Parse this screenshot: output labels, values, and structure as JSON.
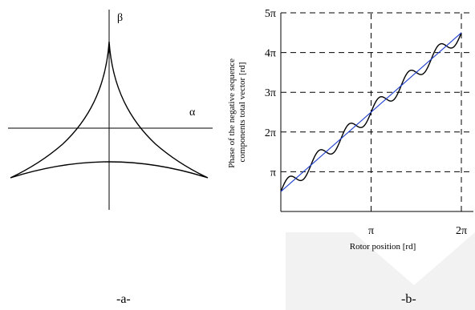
{
  "panel_a": {
    "axis_alpha": "α",
    "axis_beta": "β",
    "caption": "-a-"
  },
  "panel_b": {
    "caption": "-b-"
  },
  "chart_data": [
    {
      "type": "line",
      "panel": "a",
      "title": "",
      "xlabel": "α",
      "ylabel": "β",
      "shape": "three-cusp hypocycloid locus of negative sequence vector",
      "series": [
        {
          "name": "",
          "points": [
            [
              -0.18,
              0.78
            ],
            [
              -0.02,
              0.99
            ],
            [
              0.02,
              0.99
            ],
            [
              0.18,
              0.78
            ],
            [
              0.5,
              0.42
            ],
            [
              0.99,
              -0.05
            ],
            [
              0.5,
              0.02
            ],
            [
              -0.5,
              0.02
            ],
            [
              -0.99,
              -0.05
            ],
            [
              -0.5,
              0.42
            ]
          ]
        }
      ],
      "xlim": [
        -1.1,
        1.1
      ],
      "ylim": [
        -1.0,
        1.35
      ]
    },
    {
      "type": "line",
      "panel": "b",
      "title": "",
      "xlabel": "Rotor position [rd]",
      "ylabel": "Phase of the negative sequence components total vector [rd]",
      "x_ticks": [
        {
          "value": 3.14159,
          "label": "π"
        },
        {
          "value": 6.28318,
          "label": "2π"
        }
      ],
      "y_ticks": [
        {
          "value": 3.14159,
          "label": "π"
        },
        {
          "value": 6.28318,
          "label": "2π"
        },
        {
          "value": 9.42478,
          "label": "3π"
        },
        {
          "value": 12.56637,
          "label": "4π"
        },
        {
          "value": 15.70796,
          "label": "5π"
        }
      ],
      "xlim": [
        0,
        6.28318
      ],
      "ylim": [
        0,
        15.70796
      ],
      "grid": true,
      "series": [
        {
          "name": "",
          "color": "#000000",
          "style": "staircase oscillation around linear trend",
          "x": [
            0.0,
            0.393,
            0.785,
            1.178,
            1.571,
            1.963,
            2.356,
            2.749,
            3.142,
            3.534,
            3.927,
            4.32,
            4.712,
            5.105,
            5.498,
            5.89,
            6.283
          ],
          "y": [
            1.571,
            2.9,
            3.3,
            4.0,
            5.5,
            6.2,
            7.0,
            8.1,
            8.64,
            9.3,
            10.0,
            11.3,
            11.78,
            12.4,
            13.2,
            13.8,
            14.14
          ]
        },
        {
          "name": "",
          "color": "#1f3fcf",
          "style": "straight line",
          "x": [
            0.0,
            6.283
          ],
          "y": [
            1.571,
            14.137
          ]
        }
      ]
    }
  ]
}
